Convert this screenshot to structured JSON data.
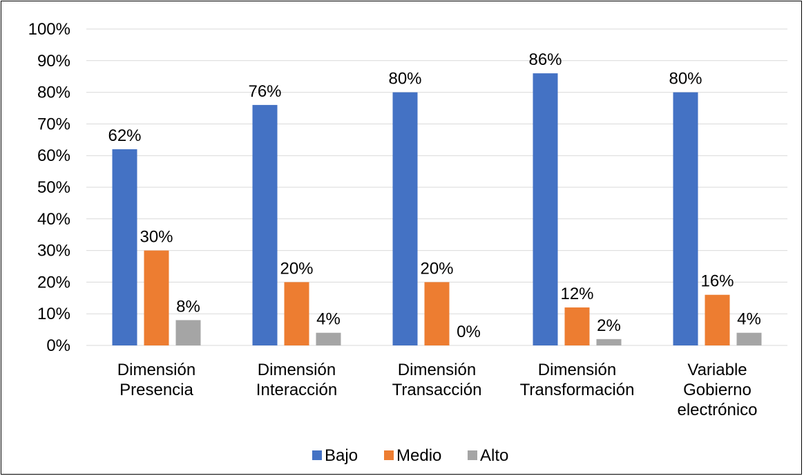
{
  "chart_data": {
    "type": "bar",
    "categories": [
      [
        "Dimensión",
        "Presencia"
      ],
      [
        "Dimensión",
        "Interacción"
      ],
      [
        "Dimensión",
        "Transacción"
      ],
      [
        "Dimensión",
        "Transformación"
      ],
      [
        "Variable",
        "Gobierno",
        "electrónico"
      ]
    ],
    "series": [
      {
        "name": "Bajo",
        "color": "#4472C4",
        "values": [
          62,
          76,
          80,
          86,
          80
        ],
        "labels": [
          "62%",
          "76%",
          "80%",
          "86%",
          "80%"
        ]
      },
      {
        "name": "Medio",
        "color": "#ED7D31",
        "values": [
          30,
          20,
          20,
          12,
          16
        ],
        "labels": [
          "30%",
          "20%",
          "20%",
          "12%",
          "16%"
        ]
      },
      {
        "name": "Alto",
        "color": "#A5A5A5",
        "values": [
          8,
          4,
          0,
          2,
          4
        ],
        "labels": [
          "8%",
          "4%",
          "0%",
          "2%",
          "4%"
        ]
      }
    ],
    "y_ticks": [
      "0%",
      "10%",
      "20%",
      "30%",
      "40%",
      "50%",
      "60%",
      "70%",
      "80%",
      "90%",
      "100%"
    ],
    "ylim": [
      0,
      100
    ],
    "grid": true,
    "legend_position": "bottom",
    "title": "",
    "xlabel": "",
    "ylabel": ""
  }
}
